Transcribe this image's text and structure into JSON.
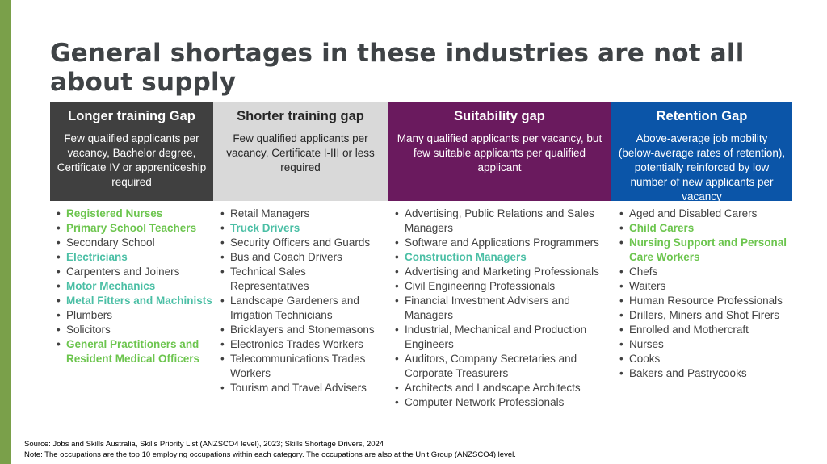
{
  "title": "General shortages in these industries are not all about supply",
  "columns": [
    {
      "header": "Longer training Gap",
      "description": "Few qualified applicants per vacancy, Bachelor degree, Certificate IV or apprenticeship required",
      "color": "#404040",
      "items": [
        {
          "text": "Registered Nurses",
          "highlight": true
        },
        {
          "text": "Primary School Teachers",
          "highlight": true
        },
        {
          "text": "Secondary School",
          "highlight": false
        },
        {
          "text": "Electricians",
          "highlight": true
        },
        {
          "text": "Carpenters and Joiners",
          "highlight": false
        },
        {
          "text": "Motor Mechanics",
          "highlight": true
        },
        {
          "text": "Metal Fitters and Machinists",
          "highlight": true
        },
        {
          "text": "Plumbers",
          "highlight": false
        },
        {
          "text": "Solicitors",
          "highlight": false
        },
        {
          "text": "General Practitioners and Resident Medical Officers",
          "highlight": true
        }
      ]
    },
    {
      "header": "Shorter training gap",
      "description": "Few qualified applicants per vacancy, Certificate I-III or less required",
      "color": "#d9d9d9",
      "items": [
        {
          "text": "Retail Managers",
          "highlight": false
        },
        {
          "text": "Truck Drivers",
          "highlight": true
        },
        {
          "text": "Security Officers and Guards",
          "highlight": false
        },
        {
          "text": "Bus and Coach Drivers",
          "highlight": false
        },
        {
          "text": "Technical Sales Representatives",
          "highlight": false
        },
        {
          "text": "Landscape Gardeners and Irrigation Technicians",
          "highlight": false
        },
        {
          "text": "Bricklayers and Stonemasons",
          "highlight": false
        },
        {
          "text": "Electronics Trades Workers",
          "highlight": false
        },
        {
          "text": "Telecommunications Trades Workers",
          "highlight": false
        },
        {
          "text": "Tourism and Travel Advisers",
          "highlight": false
        }
      ]
    },
    {
      "header": "Suitability gap",
      "description": "Many qualified applicants per vacancy, but few suitable applicants per qualified applicant",
      "color": "#6a1a5e",
      "items": [
        {
          "text": "Advertising, Public Relations and Sales Managers",
          "highlight": false
        },
        {
          "text": "Software and Applications Programmers",
          "highlight": false
        },
        {
          "text": "Construction Managers",
          "highlight": true
        },
        {
          "text": "Advertising and Marketing Professionals",
          "highlight": false
        },
        {
          "text": "Civil Engineering Professionals",
          "highlight": false
        },
        {
          "text": "Financial Investment Advisers and Managers",
          "highlight": false
        },
        {
          "text": "Industrial, Mechanical and Production Engineers",
          "highlight": false
        },
        {
          "text": "Auditors, Company Secretaries and Corporate Treasurers",
          "highlight": false
        },
        {
          "text": "Architects and Landscape Architects",
          "highlight": false
        },
        {
          "text": "Computer Network Professionals",
          "highlight": false
        }
      ]
    },
    {
      "header": "Retention Gap",
      "description": "Above-average job mobility (below-average rates of retention), potentially reinforced by low number of new applicants per vacancy",
      "color": "#0b55a8",
      "items": [
        {
          "text": "Aged and Disabled Carers",
          "highlight": false
        },
        {
          "text": "Child Carers",
          "highlight": true
        },
        {
          "text": "Nursing Support and Personal Care Workers",
          "highlight": true
        },
        {
          "text": "Chefs",
          "highlight": false
        },
        {
          "text": "Waiters",
          "highlight": false
        },
        {
          "text": "Human Resource Professionals",
          "highlight": false
        },
        {
          "text": "Drillers, Miners and Shot Firers",
          "highlight": false
        },
        {
          "text": "Enrolled and Mothercraft",
          "highlight": false
        },
        {
          "text": "Nurses",
          "highlight": false
        },
        {
          "text": "Cooks",
          "highlight": false
        },
        {
          "text": "Bakers and Pastrycooks",
          "highlight": false
        }
      ]
    }
  ],
  "footer": {
    "source": "Source: Jobs and Skills Australia, Skills Priority List (ANZSCO4 level), 2023; Skills Shortage Drivers, 2024",
    "note": "Note:  The occupations are the top 10 employing occupations within each category. The occupations are also at the Unit Group (ANZSCO4) level."
  },
  "colors": {
    "accent_bar": "#7aa04a",
    "highlight_green": "#6cc54e",
    "highlight_teal": "#4bbfa5",
    "body_text": "#404040"
  }
}
